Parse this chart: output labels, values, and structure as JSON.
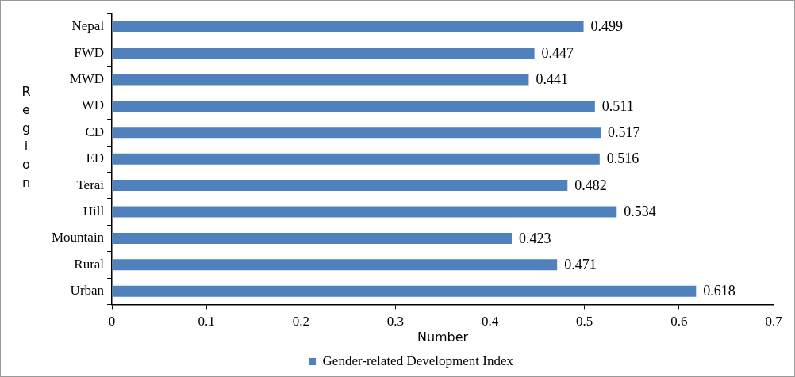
{
  "chart_data": {
    "type": "bar",
    "orientation": "horizontal",
    "xlabel": "Number",
    "ylabel": "Region",
    "categories": [
      "Nepal",
      "FWD",
      "MWD",
      "WD",
      "CD",
      "ED",
      "Terai",
      "Hill",
      "Mountain",
      "Rural",
      "Urban"
    ],
    "series": [
      {
        "name": "Gender-related Development Index",
        "color": "#4f81bd",
        "values": [
          0.499,
          0.447,
          0.441,
          0.511,
          0.517,
          0.516,
          0.482,
          0.534,
          0.423,
          0.471,
          0.618
        ]
      }
    ],
    "xlim": [
      0,
      0.7
    ],
    "xticks": [
      0,
      0.1,
      0.2,
      0.3,
      0.4,
      0.5,
      0.6,
      0.7
    ],
    "grid": false,
    "legend": "bottom",
    "data_labels": true
  }
}
